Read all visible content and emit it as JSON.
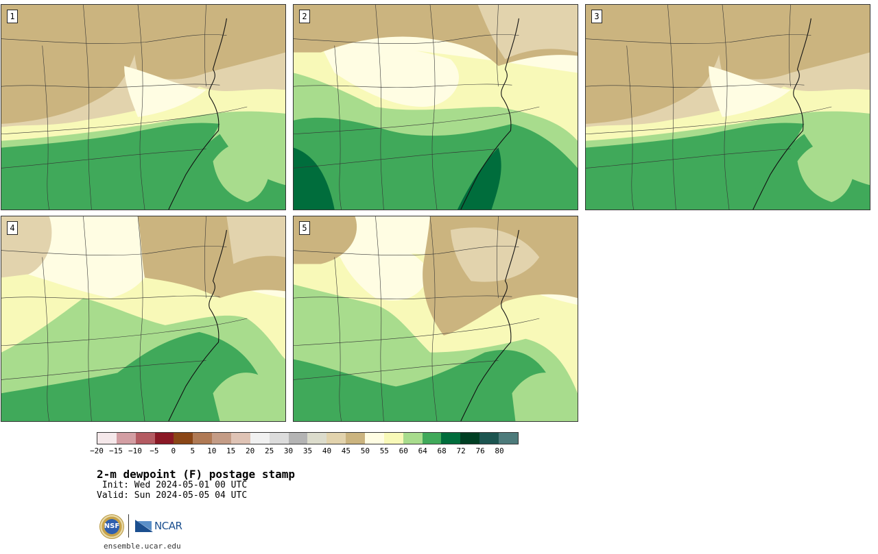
{
  "panels": [
    {
      "label": "1",
      "regime": "north-dry"
    },
    {
      "label": "2",
      "regime": "moist-wide"
    },
    {
      "label": "3",
      "regime": "north-dry"
    },
    {
      "label": "4",
      "regime": "moderate"
    },
    {
      "label": "5",
      "regime": "moderate-wedge"
    }
  ],
  "colorbar": {
    "colors": [
      "#f5e8ea",
      "#d39ea3",
      "#b45b62",
      "#8a1825",
      "#8a4616",
      "#b07a55",
      "#c49c86",
      "#dfc3b5",
      "#f1f1f1",
      "#dcdcdc",
      "#b4b4b4",
      "#dcdccc",
      "#e2d3ad",
      "#cbb47f",
      "#fffde3",
      "#f8f9b8",
      "#a8dc8d",
      "#40a95a",
      "#006d3c",
      "#003f23",
      "#1c5550",
      "#4d7b7b"
    ],
    "tick_labels": [
      "−20",
      "−15",
      "−10",
      "−5",
      "0",
      "5",
      "10",
      "15",
      "20",
      "25",
      "30",
      "35",
      "40",
      "45",
      "50",
      "55",
      "60",
      "64",
      "68",
      "72",
      "76",
      "80"
    ]
  },
  "text": {
    "title": "2-m dewpoint (F) postage stamp",
    "init": " Init: Wed 2024-05-01 00 UTC",
    "valid": "Valid: Sun 2024-05-05 04 UTC",
    "url": "ensemble.ucar.edu",
    "nsf_logo": "NSF",
    "ncar_logo": "NCAR"
  }
}
